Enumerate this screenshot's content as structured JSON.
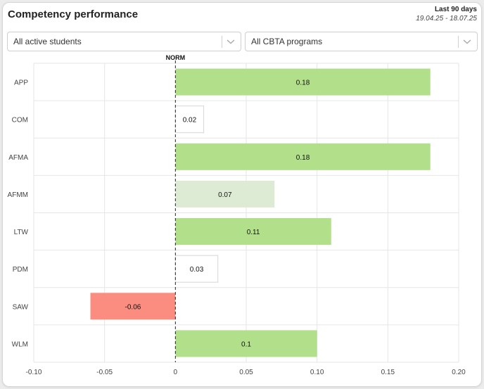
{
  "header": {
    "title": "Competency performance",
    "period_label": "Last 90 days",
    "period_range": "19.04.25 - 18.07.25"
  },
  "filters": {
    "students": {
      "value": "All active students",
      "icon": "chevron-down-icon"
    },
    "programs": {
      "value": "All CBTA programs",
      "icon": "chevron-down-icon"
    }
  },
  "chart_data": {
    "type": "bar",
    "orientation": "horizontal",
    "reference_line": {
      "label": "NORM",
      "value": 0,
      "style": "dashed"
    },
    "categories": [
      "APP",
      "COM",
      "AFMA",
      "AFMM",
      "LTW",
      "PDM",
      "SAW",
      "WLM"
    ],
    "values": [
      0.18,
      0.02,
      0.18,
      0.07,
      0.11,
      0.03,
      -0.06,
      0.1
    ],
    "data_labels": [
      "0.18",
      "0.02",
      "0.18",
      "0.07",
      "0.11",
      "0.03",
      "-0.06",
      "0.1"
    ],
    "bar_colors": [
      "#b2df8a",
      "#ffffff",
      "#b2df8a",
      "#deebd4",
      "#b2df8a",
      "#ffffff",
      "#fb8c80",
      "#b2df8a"
    ],
    "xlim": [
      -0.1,
      0.2
    ],
    "xticks": [
      -0.1,
      -0.05,
      0,
      0.05,
      0.1,
      0.15,
      0.2
    ],
    "xtick_labels": [
      "-0.10",
      "-0.05",
      "0",
      "0.05",
      "0.10",
      "0.15",
      "0.20"
    ],
    "grid": true,
    "legend": "none"
  }
}
